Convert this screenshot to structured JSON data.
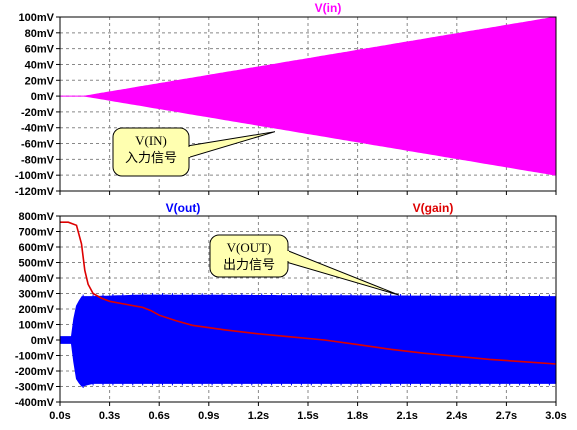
{
  "chart_data": [
    {
      "type": "line",
      "trace_label": "V(in)",
      "y_unit": "mV",
      "ylim": [
        -120,
        100
      ],
      "y_ticks": [
        100,
        80,
        60,
        40,
        20,
        0,
        -20,
        -40,
        -60,
        -80,
        -100,
        -120
      ],
      "y_tick_labels": [
        "100mV",
        "80mV",
        "60mV",
        "40mV",
        "20mV",
        "0mV",
        "-20mV",
        "-40mV",
        "-60mV",
        "-80mV",
        "-100mV",
        "-120mV"
      ],
      "x_unit": "s",
      "xlim": [
        0,
        3.0
      ],
      "grid": true,
      "series": [
        {
          "name": "V(in)",
          "color": "#ff00ff",
          "style": "oscillating-envelope",
          "envelope_x": [
            0.0,
            0.15,
            3.0
          ],
          "envelope_top": [
            0,
            0,
            100
          ],
          "envelope_bottom": [
            0,
            0,
            -100
          ]
        }
      ],
      "annotation": {
        "lines": [
          "V(IN)",
          "入力信号"
        ],
        "points_to": [
          1.3,
          -45
        ]
      }
    },
    {
      "type": "line",
      "y_unit": "mV",
      "ylim": [
        -400,
        800
      ],
      "y_ticks": [
        800,
        700,
        600,
        500,
        400,
        300,
        200,
        100,
        0,
        -100,
        -200,
        -300,
        -400
      ],
      "y_tick_labels": [
        "800mV",
        "700mV",
        "600mV",
        "500mV",
        "400mV",
        "300mV",
        "200mV",
        "100mV",
        "0mV",
        "-100mV",
        "-200mV",
        "-300mV",
        "-400mV"
      ],
      "x_unit": "s",
      "xlim": [
        0,
        3.0
      ],
      "x_ticks": [
        0.0,
        0.3,
        0.6,
        0.9,
        1.2,
        1.5,
        1.8,
        2.1,
        2.4,
        2.7,
        3.0
      ],
      "x_tick_labels": [
        "0.0s",
        "0.3s",
        "0.6s",
        "0.9s",
        "1.2s",
        "1.5s",
        "1.8s",
        "2.1s",
        "2.4s",
        "2.7s",
        "3.0s"
      ],
      "grid": true,
      "series": [
        {
          "name": "V(out)",
          "color": "#0000ff",
          "style": "oscillating-envelope",
          "envelope_x": [
            0.0,
            0.07,
            0.08,
            0.1,
            0.13,
            0.16,
            0.2,
            0.5,
            3.0
          ],
          "envelope_top": [
            0,
            0,
            120,
            220,
            280,
            280,
            280,
            290,
            280
          ],
          "envelope_bottom": [
            0,
            0,
            -120,
            -250,
            -300,
            -290,
            -280,
            -280,
            -280
          ],
          "pre_band": {
            "x": [
              0.0,
              0.07
            ],
            "top": 25,
            "bottom": -25
          }
        },
        {
          "name": "V(gain)",
          "color": "#dd0000",
          "style": "line",
          "x": [
            0.0,
            0.05,
            0.1,
            0.13,
            0.15,
            0.17,
            0.2,
            0.25,
            0.3,
            0.4,
            0.5,
            0.55,
            0.6,
            0.7,
            0.8,
            1.0,
            1.2,
            1.4,
            1.6,
            1.8,
            2.0,
            2.2,
            2.4,
            2.6,
            2.8,
            3.0
          ],
          "y": [
            760,
            760,
            740,
            620,
            450,
            360,
            300,
            270,
            250,
            230,
            210,
            190,
            160,
            125,
            95,
            65,
            40,
            20,
            0,
            -30,
            -60,
            -85,
            -105,
            -125,
            -140,
            -155
          ]
        }
      ],
      "annotation": {
        "lines": [
          "V(OUT)",
          "出力信号"
        ],
        "points_to": [
          2.05,
          290
        ]
      }
    }
  ]
}
